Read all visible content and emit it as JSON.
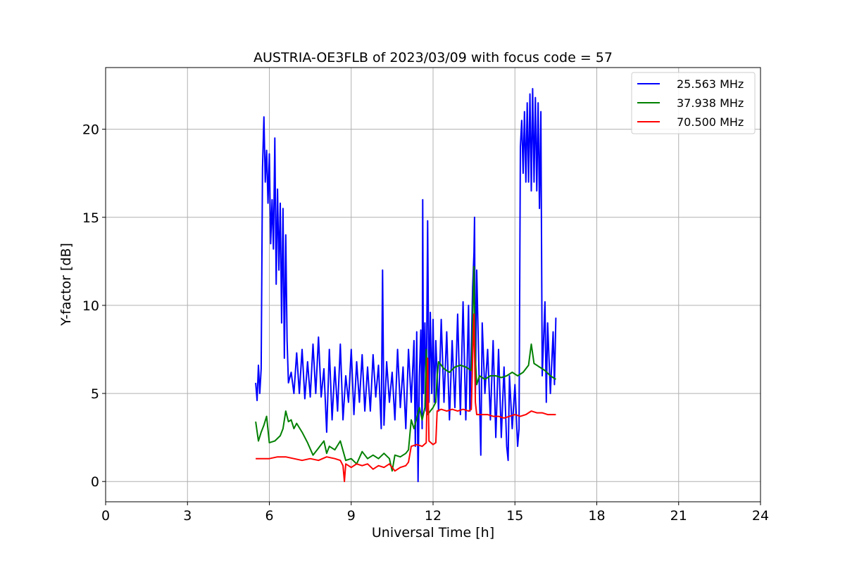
{
  "chart_data": {
    "type": "line",
    "title": "AUSTRIA-OE3FLB of 2023/03/09 with focus code = 57",
    "xlabel": "Universal Time [h]",
    "ylabel": "Y-factor [dB]",
    "xlim": [
      0,
      24
    ],
    "ylim": [
      -1.15,
      23.5
    ],
    "xticks": [
      0,
      3,
      6,
      9,
      12,
      15,
      18,
      21,
      24
    ],
    "yticks": [
      0,
      5,
      10,
      15,
      20
    ],
    "grid": true,
    "legend_position": "top-right",
    "series": [
      {
        "name": "25.563 MHz",
        "color": "#0000ff",
        "points": [
          [
            5.5,
            5.6
          ],
          [
            5.55,
            4.6
          ],
          [
            5.6,
            6.6
          ],
          [
            5.65,
            5.0
          ],
          [
            5.7,
            6.4
          ],
          [
            5.75,
            17.8
          ],
          [
            5.8,
            20.7
          ],
          [
            5.85,
            17.0
          ],
          [
            5.9,
            18.8
          ],
          [
            5.95,
            15.8
          ],
          [
            6.0,
            18.6
          ],
          [
            6.05,
            13.5
          ],
          [
            6.1,
            16.0
          ],
          [
            6.15,
            13.2
          ],
          [
            6.2,
            19.5
          ],
          [
            6.25,
            11.2
          ],
          [
            6.3,
            16.6
          ],
          [
            6.35,
            12.0
          ],
          [
            6.4,
            15.8
          ],
          [
            6.45,
            9.0
          ],
          [
            6.5,
            15.5
          ],
          [
            6.55,
            7.0
          ],
          [
            6.6,
            14.0
          ],
          [
            6.65,
            8.0
          ],
          [
            6.7,
            5.6
          ],
          [
            6.8,
            6.2
          ],
          [
            6.9,
            5.0
          ],
          [
            7.0,
            7.3
          ],
          [
            7.1,
            5.0
          ],
          [
            7.2,
            7.5
          ],
          [
            7.3,
            4.7
          ],
          [
            7.4,
            6.8
          ],
          [
            7.5,
            4.8
          ],
          [
            7.6,
            7.8
          ],
          [
            7.7,
            5.0
          ],
          [
            7.8,
            8.2
          ],
          [
            7.9,
            4.8
          ],
          [
            8.0,
            6.4
          ],
          [
            8.1,
            2.8
          ],
          [
            8.2,
            7.5
          ],
          [
            8.3,
            3.5
          ],
          [
            8.4,
            6.5
          ],
          [
            8.5,
            4.0
          ],
          [
            8.6,
            7.8
          ],
          [
            8.7,
            3.5
          ],
          [
            8.8,
            6.0
          ],
          [
            8.9,
            4.5
          ],
          [
            9.0,
            7.5
          ],
          [
            9.1,
            3.8
          ],
          [
            9.2,
            6.8
          ],
          [
            9.3,
            4.5
          ],
          [
            9.4,
            7.2
          ],
          [
            9.5,
            4.0
          ],
          [
            9.6,
            6.5
          ],
          [
            9.7,
            4.0
          ],
          [
            9.8,
            7.2
          ],
          [
            9.9,
            4.8
          ],
          [
            10.0,
            6.6
          ],
          [
            10.1,
            3.0
          ],
          [
            10.15,
            12.0
          ],
          [
            10.2,
            3.2
          ],
          [
            10.3,
            6.8
          ],
          [
            10.4,
            4.5
          ],
          [
            10.5,
            6.2
          ],
          [
            10.6,
            3.5
          ],
          [
            10.7,
            7.5
          ],
          [
            10.8,
            4.2
          ],
          [
            10.9,
            6.5
          ],
          [
            11.0,
            3.0
          ],
          [
            11.1,
            7.5
          ],
          [
            11.2,
            4.5
          ],
          [
            11.3,
            8.0
          ],
          [
            11.35,
            2.0
          ],
          [
            11.4,
            8.5
          ],
          [
            11.45,
            0.0
          ],
          [
            11.5,
            6.0
          ],
          [
            11.55,
            8.6
          ],
          [
            11.6,
            3.0
          ],
          [
            11.62,
            16.0
          ],
          [
            11.65,
            5.0
          ],
          [
            11.7,
            9.0
          ],
          [
            11.75,
            4.0
          ],
          [
            11.8,
            14.8
          ],
          [
            11.85,
            4.5
          ],
          [
            11.9,
            9.6
          ],
          [
            11.95,
            5.0
          ],
          [
            12.0,
            9.2
          ],
          [
            12.05,
            4.5
          ],
          [
            12.1,
            8.0
          ],
          [
            12.2,
            4.0
          ],
          [
            12.3,
            9.2
          ],
          [
            12.4,
            4.5
          ],
          [
            12.5,
            8.5
          ],
          [
            12.6,
            3.5
          ],
          [
            12.7,
            8.0
          ],
          [
            12.8,
            4.2
          ],
          [
            12.9,
            9.5
          ],
          [
            13.0,
            3.8
          ],
          [
            13.1,
            10.2
          ],
          [
            13.2,
            3.5
          ],
          [
            13.3,
            10.0
          ],
          [
            13.35,
            4.0
          ],
          [
            13.45,
            11.0
          ],
          [
            13.5,
            13.0
          ],
          [
            13.52,
            15.0
          ],
          [
            13.55,
            5.0
          ],
          [
            13.6,
            12.0
          ],
          [
            13.7,
            5.0
          ],
          [
            13.75,
            1.5
          ],
          [
            13.8,
            9.0
          ],
          [
            13.9,
            5.0
          ],
          [
            14.0,
            7.5
          ],
          [
            14.1,
            3.5
          ],
          [
            14.2,
            8.0
          ],
          [
            14.3,
            2.5
          ],
          [
            14.4,
            7.5
          ],
          [
            14.5,
            2.5
          ],
          [
            14.6,
            6.5
          ],
          [
            14.7,
            2.0
          ],
          [
            14.75,
            1.2
          ],
          [
            14.8,
            6.0
          ],
          [
            14.9,
            3.0
          ],
          [
            15.0,
            5.5
          ],
          [
            15.1,
            2.0
          ],
          [
            15.15,
            3.0
          ],
          [
            15.2,
            19.0
          ],
          [
            15.25,
            20.5
          ],
          [
            15.3,
            17.5
          ],
          [
            15.35,
            21.0
          ],
          [
            15.4,
            17.0
          ],
          [
            15.45,
            21.5
          ],
          [
            15.5,
            17.0
          ],
          [
            15.55,
            22.0
          ],
          [
            15.6,
            16.5
          ],
          [
            15.65,
            22.3
          ],
          [
            15.7,
            17.0
          ],
          [
            15.75,
            21.8
          ],
          [
            15.8,
            16.5
          ],
          [
            15.85,
            21.5
          ],
          [
            15.9,
            15.5
          ],
          [
            15.95,
            21.0
          ],
          [
            16.0,
            6.0
          ],
          [
            16.05,
            8.0
          ],
          [
            16.1,
            10.2
          ],
          [
            16.15,
            4.5
          ],
          [
            16.2,
            9.0
          ],
          [
            16.3,
            5.0
          ],
          [
            16.4,
            8.5
          ],
          [
            16.45,
            5.5
          ],
          [
            16.5,
            9.3
          ]
        ]
      },
      {
        "name": "37.938 MHz",
        "color": "#008000",
        "points": [
          [
            5.5,
            3.4
          ],
          [
            5.6,
            2.3
          ],
          [
            5.7,
            2.8
          ],
          [
            5.8,
            3.2
          ],
          [
            5.9,
            3.7
          ],
          [
            6.0,
            2.2
          ],
          [
            6.2,
            2.3
          ],
          [
            6.4,
            2.6
          ],
          [
            6.5,
            3.0
          ],
          [
            6.6,
            4.0
          ],
          [
            6.7,
            3.4
          ],
          [
            6.8,
            3.5
          ],
          [
            6.9,
            3.0
          ],
          [
            7.0,
            3.3
          ],
          [
            7.2,
            2.8
          ],
          [
            7.4,
            2.2
          ],
          [
            7.6,
            1.5
          ],
          [
            7.8,
            1.9
          ],
          [
            8.0,
            2.3
          ],
          [
            8.1,
            1.6
          ],
          [
            8.2,
            2.0
          ],
          [
            8.4,
            1.8
          ],
          [
            8.6,
            2.3
          ],
          [
            8.8,
            1.2
          ],
          [
            9.0,
            1.3
          ],
          [
            9.2,
            1.0
          ],
          [
            9.4,
            1.7
          ],
          [
            9.6,
            1.3
          ],
          [
            9.8,
            1.5
          ],
          [
            10.0,
            1.3
          ],
          [
            10.2,
            1.6
          ],
          [
            10.4,
            1.3
          ],
          [
            10.5,
            0.6
          ],
          [
            10.6,
            1.5
          ],
          [
            10.8,
            1.4
          ],
          [
            11.0,
            1.6
          ],
          [
            11.1,
            1.8
          ],
          [
            11.2,
            3.5
          ],
          [
            11.3,
            3.0
          ],
          [
            11.4,
            3.6
          ],
          [
            11.5,
            4.2
          ],
          [
            11.6,
            3.5
          ],
          [
            11.7,
            4.2
          ],
          [
            11.75,
            7.5
          ],
          [
            11.8,
            3.8
          ],
          [
            11.9,
            4.0
          ],
          [
            12.0,
            4.2
          ],
          [
            12.1,
            4.5
          ],
          [
            12.15,
            6.0
          ],
          [
            12.2,
            6.8
          ],
          [
            12.4,
            6.4
          ],
          [
            12.6,
            6.2
          ],
          [
            12.8,
            6.5
          ],
          [
            13.0,
            6.6
          ],
          [
            13.2,
            6.5
          ],
          [
            13.4,
            6.3
          ],
          [
            13.45,
            9.0
          ],
          [
            13.5,
            12.2
          ],
          [
            13.55,
            7.0
          ],
          [
            13.6,
            5.5
          ],
          [
            13.7,
            6.0
          ],
          [
            13.9,
            5.8
          ],
          [
            14.1,
            6.0
          ],
          [
            14.3,
            6.0
          ],
          [
            14.5,
            5.9
          ],
          [
            14.7,
            6.0
          ],
          [
            14.9,
            6.2
          ],
          [
            15.1,
            6.0
          ],
          [
            15.3,
            6.2
          ],
          [
            15.5,
            6.6
          ],
          [
            15.6,
            7.8
          ],
          [
            15.7,
            6.7
          ],
          [
            15.9,
            6.5
          ],
          [
            16.1,
            6.3
          ],
          [
            16.3,
            6.0
          ],
          [
            16.5,
            5.8
          ]
        ]
      },
      {
        "name": "70.500 MHz",
        "color": "#ff0000",
        "points": [
          [
            5.5,
            1.3
          ],
          [
            5.8,
            1.3
          ],
          [
            6.0,
            1.3
          ],
          [
            6.3,
            1.4
          ],
          [
            6.6,
            1.4
          ],
          [
            6.9,
            1.3
          ],
          [
            7.2,
            1.2
          ],
          [
            7.5,
            1.3
          ],
          [
            7.8,
            1.2
          ],
          [
            8.1,
            1.4
          ],
          [
            8.4,
            1.3
          ],
          [
            8.6,
            1.2
          ],
          [
            8.7,
            0.9
          ],
          [
            8.75,
            0.0
          ],
          [
            8.8,
            1.0
          ],
          [
            9.0,
            0.8
          ],
          [
            9.2,
            1.0
          ],
          [
            9.4,
            0.9
          ],
          [
            9.6,
            1.0
          ],
          [
            9.8,
            0.7
          ],
          [
            10.0,
            0.9
          ],
          [
            10.2,
            0.8
          ],
          [
            10.4,
            1.0
          ],
          [
            10.6,
            0.6
          ],
          [
            10.8,
            0.8
          ],
          [
            11.0,
            0.9
          ],
          [
            11.1,
            1.1
          ],
          [
            11.2,
            2.0
          ],
          [
            11.4,
            2.1
          ],
          [
            11.6,
            2.0
          ],
          [
            11.75,
            2.2
          ],
          [
            11.8,
            7.0
          ],
          [
            11.85,
            2.3
          ],
          [
            12.0,
            2.1
          ],
          [
            12.1,
            2.2
          ],
          [
            12.15,
            4.0
          ],
          [
            12.3,
            4.1
          ],
          [
            12.5,
            4.0
          ],
          [
            12.7,
            4.1
          ],
          [
            12.9,
            4.0
          ],
          [
            13.1,
            4.1
          ],
          [
            13.3,
            4.0
          ],
          [
            13.4,
            4.1
          ],
          [
            13.45,
            7.0
          ],
          [
            13.5,
            9.5
          ],
          [
            13.55,
            4.5
          ],
          [
            13.6,
            3.8
          ],
          [
            13.8,
            3.8
          ],
          [
            14.0,
            3.8
          ],
          [
            14.2,
            3.7
          ],
          [
            14.4,
            3.7
          ],
          [
            14.6,
            3.6
          ],
          [
            14.8,
            3.7
          ],
          [
            15.0,
            3.8
          ],
          [
            15.2,
            3.7
          ],
          [
            15.4,
            3.8
          ],
          [
            15.6,
            4.0
          ],
          [
            15.8,
            3.9
          ],
          [
            16.0,
            3.9
          ],
          [
            16.2,
            3.8
          ],
          [
            16.5,
            3.8
          ]
        ]
      }
    ]
  }
}
